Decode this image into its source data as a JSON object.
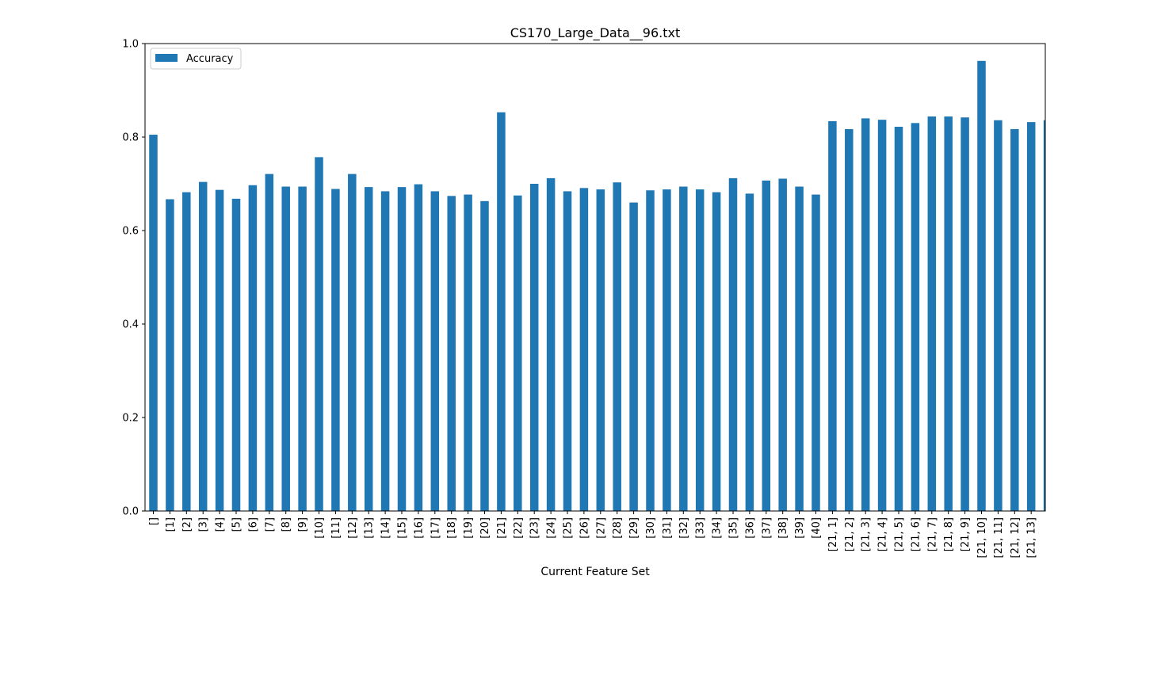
{
  "chart_data": {
    "type": "bar",
    "title": "CS170_Large_Data__96.txt",
    "xlabel": "Current Feature Set",
    "ylabel": "",
    "ylim": [
      0,
      1.0
    ],
    "yticks": [
      "0.0",
      "0.2",
      "0.4",
      "0.6",
      "0.8",
      "1.0"
    ],
    "grid": false,
    "legend": {
      "placement": "top-left",
      "entries": [
        "Accuracy"
      ]
    },
    "categories": [
      "[]",
      "[1]",
      "[2]",
      "[3]",
      "[4]",
      "[5]",
      "[6]",
      "[7]",
      "[8]",
      "[9]",
      "[10]",
      "[11]",
      "[12]",
      "[13]",
      "[14]",
      "[15]",
      "[16]",
      "[17]",
      "[18]",
      "[19]",
      "[20]",
      "[21]",
      "[22]",
      "[23]",
      "[24]",
      "[25]",
      "[26]",
      "[27]",
      "[28]",
      "[29]",
      "[30]",
      "[31]",
      "[32]",
      "[33]",
      "[34]",
      "[35]",
      "[36]",
      "[37]",
      "[38]",
      "[39]",
      "[40]",
      "[21, 1]",
      "[21, 2]",
      "[21, 3]",
      "[21, 4]",
      "[21, 5]",
      "[21, 6]",
      "[21, 7]",
      "[21, 8]",
      "[21, 9]",
      "[21, 10]",
      "[21, 11]",
      "[21, 12]",
      "[21, 13]",
      ""
    ],
    "series": [
      {
        "name": "Accuracy",
        "color": "#1f77b4",
        "values": [
          0.805,
          0.667,
          0.682,
          0.704,
          0.687,
          0.668,
          0.697,
          0.721,
          0.694,
          0.694,
          0.757,
          0.689,
          0.721,
          0.693,
          0.684,
          0.693,
          0.699,
          0.684,
          0.674,
          0.677,
          0.663,
          0.853,
          0.675,
          0.7,
          0.712,
          0.684,
          0.691,
          0.688,
          0.703,
          0.66,
          0.686,
          0.688,
          0.694,
          0.688,
          0.682,
          0.712,
          0.679,
          0.707,
          0.711,
          0.694,
          0.677,
          0.834,
          0.817,
          0.84,
          0.837,
          0.822,
          0.83,
          0.844,
          0.844,
          0.842,
          0.963,
          0.836,
          0.817,
          0.832,
          0.836
        ]
      }
    ]
  }
}
